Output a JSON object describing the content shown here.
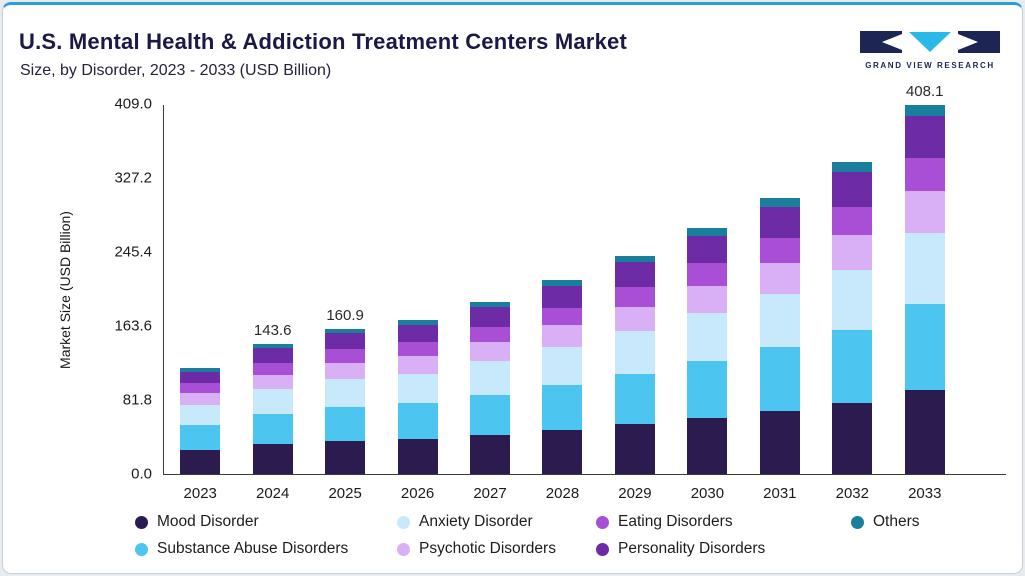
{
  "header": {
    "title": "U.S. Mental Health & Addiction Treatment Centers Market",
    "subtitle": "Size, by Disorder, 2023 - 2033 (USD Billion)"
  },
  "logo": {
    "text": "GRAND VIEW RESEARCH",
    "navy": "#1c2553",
    "cyan": "#29b9e7"
  },
  "colors": {
    "card_accent": "#2d9dd8",
    "axis": "#3a3a3a"
  },
  "chart_data": {
    "type": "bar",
    "stacked": true,
    "title": "U.S. Mental Health & Addiction Treatment Centers Market Size, by Disorder, 2023 - 2033 (USD Billion)",
    "xlabel": "",
    "ylabel": "Market Size (USD Billion)",
    "ylim": [
      0,
      409.0
    ],
    "ytick_labels": [
      "0.0",
      "81.8",
      "163.6",
      "245.4",
      "327.2",
      "409.0"
    ],
    "grid": false,
    "legend_position": "bottom",
    "categories": [
      "2023",
      "2024",
      "2025",
      "2026",
      "2027",
      "2028",
      "2029",
      "2030",
      "2031",
      "2032",
      "2033"
    ],
    "total_labels": {
      "2024": "143.6",
      "2025": "160.9",
      "2033": "408.1"
    },
    "totals_estimated": [
      117.0,
      143.6,
      160.9,
      170.0,
      190.5,
      214.5,
      241.5,
      272.0,
      305.0,
      345.0,
      408.1
    ],
    "series": [
      {
        "name": "Mood Disorder",
        "color": "#2b1b4f",
        "values": [
          26.7,
          32.7,
          36.7,
          38.8,
          43.4,
          48.9,
          55.1,
          62.0,
          69.5,
          78.7,
          93.0
        ]
      },
      {
        "name": "Substance Abuse Disorders",
        "color": "#4cc5f1",
        "values": [
          27.1,
          33.3,
          37.3,
          39.4,
          44.2,
          49.8,
          56.0,
          63.1,
          70.8,
          80.0,
          94.7
        ]
      },
      {
        "name": "Anxiety Disorder",
        "color": "#c8e9fb",
        "values": [
          22.6,
          27.7,
          31.1,
          32.8,
          36.8,
          41.4,
          46.6,
          52.5,
          58.9,
          66.6,
          78.8
        ]
      },
      {
        "name": "Psychotic Disorders",
        "color": "#d9b0f5",
        "values": [
          13.2,
          16.2,
          18.2,
          19.2,
          21.5,
          24.2,
          27.3,
          30.7,
          34.5,
          39.0,
          46.1
        ]
      },
      {
        "name": "Eating Disorders",
        "color": "#a94fd6",
        "values": [
          10.5,
          12.9,
          14.5,
          15.3,
          17.1,
          19.3,
          21.7,
          24.5,
          27.5,
          31.0,
          36.7
        ]
      },
      {
        "name": "Personality Disorders",
        "color": "#6d2ba6",
        "values": [
          13.2,
          16.2,
          18.2,
          19.2,
          21.5,
          24.2,
          27.3,
          30.7,
          34.5,
          39.0,
          46.1
        ]
      },
      {
        "name": "Others",
        "color": "#1a7f9c",
        "values": [
          3.7,
          4.6,
          4.9,
          5.3,
          6.0,
          6.7,
          7.5,
          8.5,
          9.3,
          10.7,
          12.7
        ]
      }
    ],
    "legend_rows": [
      [
        "Mood Disorder",
        "Anxiety Disorder",
        "Eating Disorders",
        "Others"
      ],
      [
        "Substance Abuse Disorders",
        "Psychotic Disorders",
        "Personality Disorders"
      ]
    ]
  }
}
